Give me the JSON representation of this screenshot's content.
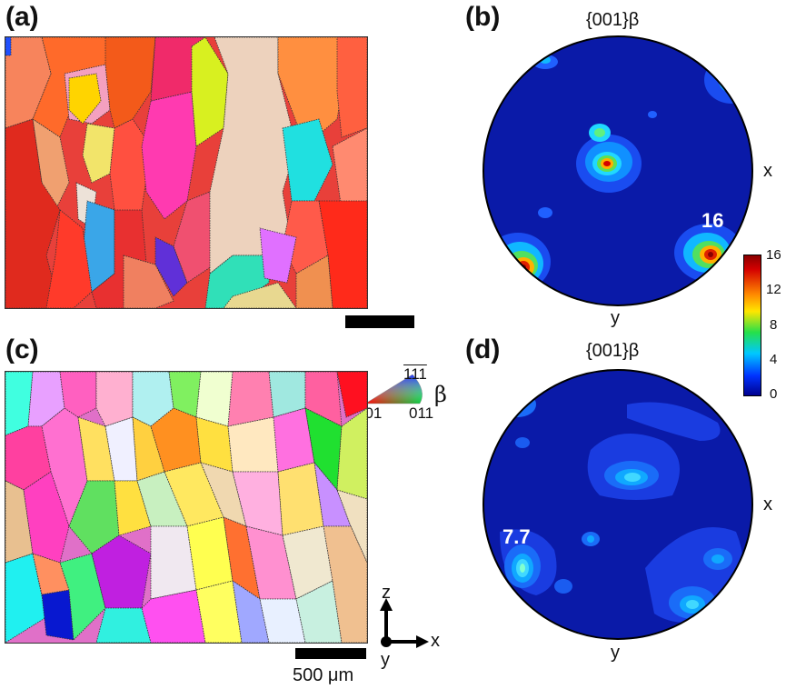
{
  "panels": {
    "a": {
      "label": "(a)"
    },
    "b": {
      "label": "(b)",
      "title": "{001}β",
      "x_label": "x",
      "y_label": "y",
      "peak_label": "16"
    },
    "c": {
      "label": "(c)"
    },
    "d": {
      "label": "(d)",
      "title": "{001}β",
      "x_label": "x",
      "y_label": "y",
      "peak_label": "7.7"
    }
  },
  "ipf_key": {
    "top": "111",
    "left": "001",
    "right": "011",
    "phase": "β"
  },
  "colorbar": {
    "ticks": [
      "16",
      "12",
      "8",
      "4",
      "0"
    ],
    "min": 0,
    "max": 16
  },
  "scale_bar": {
    "label": "500 μm"
  },
  "axes_triad": {
    "z": "z",
    "x": "x",
    "y": "y"
  },
  "colors": {
    "pole_background": "#0a1aa8",
    "cmap": [
      "#00008f",
      "#0033ff",
      "#00c8ff",
      "#25e04a",
      "#ffe600",
      "#ff8a00",
      "#d40000",
      "#8a0000"
    ]
  }
}
